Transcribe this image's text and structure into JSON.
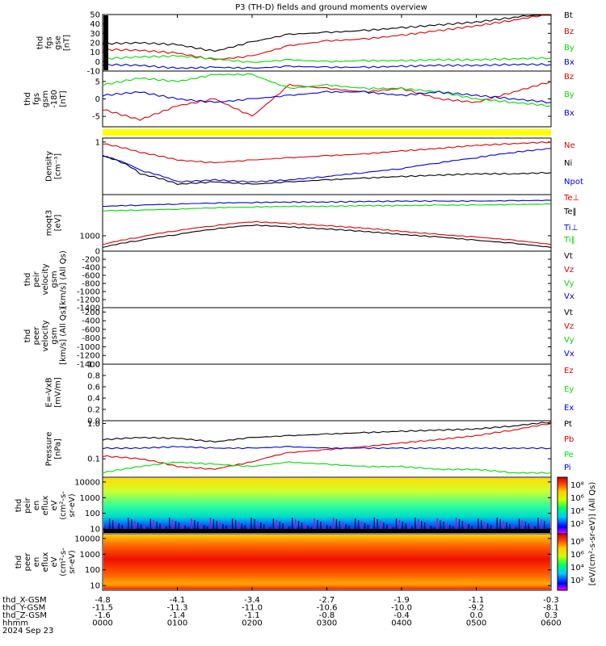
{
  "title": "P3 (TH-D) fields and ground moments overview",
  "date": "2024 Sep 23",
  "colors": {
    "black": "#000000",
    "red": "#e00000",
    "green": "#00dd00",
    "blue": "#0000dd",
    "yellow": "#ffff00"
  },
  "x_time_labels": [
    "0000",
    "0100",
    "0200",
    "0300",
    "0400",
    "0500",
    "0600"
  ],
  "ephemeris": [
    {
      "label": "thd_X-GSM",
      "values": [
        "-4.8",
        "-4.1",
        "-3.4",
        "-2.7",
        "-1.9",
        "-1.1",
        "-0.3"
      ]
    },
    {
      "label": "thd_Y-GSM",
      "values": [
        "-11.5",
        "-11.3",
        "-11.0",
        "-10.6",
        "-10.0",
        "-9.2",
        "-8.1"
      ]
    },
    {
      "label": "thd_Z-GSM",
      "values": [
        "-1.6",
        "-1.4",
        "-1.1",
        "-0.8",
        "-0.4",
        "0.0",
        "0.3"
      ]
    },
    {
      "label": "hhmm",
      "values": [
        "0000",
        "0100",
        "0200",
        "0300",
        "0400",
        "0500",
        "0600"
      ]
    }
  ],
  "spectrogram_colorbar_label": "[eV/(cm²-s-sr-eV)] (All Qs)",
  "spectrogram_colorbar_ticks": [
    "10⁸",
    "10⁶",
    "10⁴",
    "10²",
    "10⁸",
    "10⁶",
    "10⁴",
    "10²"
  ],
  "chart_data": [
    {
      "id": "fgs",
      "type": "line",
      "ylabel": [
        "thd",
        "fgs",
        "gse",
        "[nT]"
      ],
      "yticks": [
        "50",
        "40",
        "30",
        "20",
        "10",
        "0",
        "-10"
      ],
      "ylim": [
        -10,
        50
      ],
      "legend": [
        {
          "name": "Bt",
          "color": "#000000"
        },
        {
          "name": "Bz",
          "color": "#e00000"
        },
        {
          "name": "By",
          "color": "#00dd00"
        },
        {
          "name": "Bx",
          "color": "#0000dd"
        }
      ],
      "x": [
        0,
        0.5,
        1,
        1.5,
        2,
        2.5,
        3,
        3.5,
        4,
        4.5,
        5,
        5.5,
        6
      ],
      "series": [
        {
          "name": "Bt",
          "values": [
            19,
            20,
            18,
            11,
            21,
            29,
            31,
            33,
            36,
            39,
            42,
            47,
            52
          ]
        },
        {
          "name": "Bz",
          "values": [
            13,
            12,
            9,
            2,
            6,
            17,
            22,
            24,
            28,
            33,
            38,
            44,
            51
          ]
        },
        {
          "name": "By",
          "values": [
            3,
            5,
            6,
            3,
            -1,
            2,
            0,
            1,
            1,
            2,
            2,
            3,
            4
          ]
        },
        {
          "name": "Bx",
          "values": [
            -3,
            -4,
            -7,
            -6,
            -7,
            -5,
            -6,
            -6,
            -5,
            -4,
            -4,
            -3,
            -3
          ]
        }
      ]
    },
    {
      "id": "fgs_gsm",
      "type": "line",
      "ylabel": [
        "thd",
        "fgs",
        "gsm",
        "-180",
        "[nT]"
      ],
      "yticks": [
        "5",
        "0",
        "-5"
      ],
      "ylim": [
        -8,
        8
      ],
      "legend": [
        {
          "name": "Bz",
          "color": "#e00000"
        },
        {
          "name": "By",
          "color": "#00dd00"
        },
        {
          "name": "Bx",
          "color": "#0000dd"
        }
      ],
      "x": [
        0,
        0.5,
        1,
        1.5,
        2,
        2.5,
        3,
        3.5,
        4,
        4.5,
        5,
        5.5,
        6
      ],
      "series": [
        {
          "name": "Bz",
          "values": [
            -3,
            -6,
            -2,
            0,
            -5,
            4,
            3,
            2,
            3,
            0,
            -1,
            2,
            5
          ]
        },
        {
          "name": "By",
          "values": [
            4,
            6,
            5,
            7,
            7,
            3,
            4,
            3,
            3,
            2,
            0,
            -1,
            -2
          ]
        },
        {
          "name": "Bx",
          "values": [
            1,
            2,
            0,
            -1,
            0,
            1,
            2,
            2,
            1,
            2,
            1,
            0,
            -1
          ]
        }
      ]
    },
    {
      "id": "density",
      "type": "line",
      "ylabel": [
        "Density",
        "[cm⁻³]"
      ],
      "yscale": "log",
      "yticks": [
        "1"
      ],
      "ylim": [
        0.03,
        1.3
      ],
      "legend": [
        {
          "name": "Ne",
          "color": "#e00000"
        },
        {
          "name": "Ni",
          "color": "#000000"
        },
        {
          "name": "Npot",
          "color": "#0000dd"
        }
      ],
      "x": [
        0,
        0.5,
        1,
        1.5,
        2,
        2.5,
        3,
        3.5,
        4,
        4.5,
        5,
        5.5,
        6
      ],
      "series": [
        {
          "name": "Ne",
          "values": [
            0.9,
            0.5,
            0.3,
            0.25,
            0.3,
            0.35,
            0.4,
            0.45,
            0.55,
            0.65,
            0.8,
            0.9,
            1.0
          ]
        },
        {
          "name": "Ni",
          "values": [
            0.4,
            0.12,
            0.06,
            0.07,
            0.06,
            0.07,
            0.08,
            0.09,
            0.1,
            0.11,
            0.12,
            0.12,
            0.13
          ]
        },
        {
          "name": "Npot",
          "values": [
            0.4,
            0.15,
            0.07,
            0.08,
            0.07,
            0.08,
            0.1,
            0.13,
            0.17,
            0.25,
            0.35,
            0.5,
            0.65
          ]
        }
      ]
    },
    {
      "id": "temperature",
      "type": "line",
      "ylabel": [
        "moqt3",
        "[eV]"
      ],
      "yscale": "log",
      "yticks": [
        "1000"
      ],
      "ylim": [
        300,
        25000
      ],
      "legend": [
        {
          "name": "Te⊥",
          "color": "#e00000"
        },
        {
          "name": "Te‖",
          "color": "#000000"
        },
        {
          "name": "Ti⊥",
          "color": "#0000dd"
        },
        {
          "name": "Ti‖",
          "color": "#00dd00"
        }
      ],
      "x": [
        0,
        0.5,
        1,
        1.5,
        2,
        2.5,
        3,
        3.5,
        4,
        4.5,
        5,
        5.5,
        6
      ],
      "series": [
        {
          "name": "Te⊥",
          "values": [
            500,
            900,
            1500,
            2200,
            3000,
            2600,
            2200,
            1800,
            1400,
            1100,
            900,
            700,
            500
          ]
        },
        {
          "name": "Te‖",
          "values": [
            400,
            700,
            1100,
            1700,
            2300,
            2000,
            1700,
            1400,
            1100,
            900,
            700,
            550,
            400
          ]
        },
        {
          "name": "Ti⊥",
          "values": [
            10000,
            11000,
            12000,
            13000,
            13500,
            14000,
            14000,
            14500,
            15000,
            15000,
            15000,
            15500,
            16000
          ]
        },
        {
          "name": "Ti‖",
          "values": [
            7000,
            7500,
            8000,
            9000,
            9500,
            10000,
            10000,
            10500,
            10500,
            11000,
            11000,
            11500,
            12000
          ]
        }
      ]
    },
    {
      "id": "peir_velocity",
      "type": "line",
      "ylabel": [
        "thd",
        "peir",
        "velocity",
        "gsm",
        "[km/s] (All Qs)"
      ],
      "yticks": [
        "0",
        "-200",
        "-400",
        "-600",
        "-800",
        "-1000",
        "-1200",
        "-1400"
      ],
      "ylim": [
        -1400,
        0
      ],
      "legend": [
        {
          "name": "Vt",
          "color": "#000000"
        },
        {
          "name": "Vz",
          "color": "#e00000"
        },
        {
          "name": "Vy",
          "color": "#00dd00"
        },
        {
          "name": "Vx",
          "color": "#0000dd"
        }
      ],
      "series": []
    },
    {
      "id": "peer_velocity",
      "type": "line",
      "ylabel": [
        "thd",
        "peer",
        "velocity",
        "gsm",
        "[km/s] (All Qs)"
      ],
      "yticks": [
        "-200",
        "-400",
        "-600",
        "-800",
        "-1000",
        "-1200",
        "-1400"
      ],
      "ylim": [
        -1400,
        -100
      ],
      "legend": [
        {
          "name": "Vt",
          "color": "#000000"
        },
        {
          "name": "Vz",
          "color": "#e00000"
        },
        {
          "name": "Vy",
          "color": "#00dd00"
        },
        {
          "name": "Vx",
          "color": "#0000dd"
        }
      ],
      "series": []
    },
    {
      "id": "efield",
      "type": "line",
      "ylabel": [
        "E=-VxB",
        "[mV/m]"
      ],
      "yticks": [
        "1.0",
        "0.8",
        "0.6",
        "0.4",
        "0.2",
        "0.0"
      ],
      "ylim": [
        0,
        1
      ],
      "legend": [
        {
          "name": "Ez",
          "color": "#e00000"
        },
        {
          "name": "Ey",
          "color": "#00dd00"
        },
        {
          "name": "Ex",
          "color": "#0000dd"
        }
      ],
      "series": []
    },
    {
      "id": "pressure",
      "type": "line",
      "ylabel": [
        "Pressure",
        "[nPa]"
      ],
      "yscale": "log",
      "yticks": [
        "1.0",
        "0.1"
      ],
      "ylim": [
        0.03,
        1.2
      ],
      "legend": [
        {
          "name": "Pt",
          "color": "#000000"
        },
        {
          "name": "Pb",
          "color": "#e00000"
        },
        {
          "name": "Pe",
          "color": "#00dd00"
        },
        {
          "name": "Pi",
          "color": "#0000dd"
        }
      ],
      "x": [
        0,
        0.5,
        1,
        1.5,
        2,
        2.5,
        3,
        3.5,
        4,
        4.5,
        5,
        5.5,
        6
      ],
      "series": [
        {
          "name": "Pt",
          "values": [
            0.35,
            0.4,
            0.38,
            0.3,
            0.4,
            0.45,
            0.5,
            0.55,
            0.6,
            0.65,
            0.7,
            0.85,
            1.1
          ]
        },
        {
          "name": "Pb",
          "values": [
            0.12,
            0.1,
            0.06,
            0.05,
            0.08,
            0.15,
            0.18,
            0.22,
            0.28,
            0.35,
            0.45,
            0.65,
            1.0
          ]
        },
        {
          "name": "Pe",
          "values": [
            0.04,
            0.06,
            0.08,
            0.07,
            0.06,
            0.08,
            0.07,
            0.06,
            0.06,
            0.05,
            0.05,
            0.04,
            0.04
          ]
        },
        {
          "name": "Pi",
          "values": [
            0.2,
            0.2,
            0.22,
            0.2,
            0.2,
            0.22,
            0.2,
            0.2,
            0.2,
            0.2,
            0.2,
            0.2,
            0.2
          ]
        }
      ]
    },
    {
      "id": "peir_eflux",
      "type": "heatmap",
      "ylabel": [
        "thd",
        "peir",
        "en",
        "eflux",
        "eV",
        "(cm²-s-",
        "sr-eV)"
      ],
      "yscale": "log",
      "yticks": [
        "10000",
        "1000",
        "100",
        "10"
      ],
      "ylim": [
        5,
        20000
      ]
    },
    {
      "id": "peer_eflux",
      "type": "heatmap",
      "ylabel": [
        "thd",
        "peer",
        "en",
        "eflux",
        "eV",
        "(cm²-s-",
        "sr-eV)"
      ],
      "yscale": "log",
      "yticks": [
        "10000",
        "1000",
        "100",
        "10"
      ],
      "ylim": [
        5,
        20000
      ]
    }
  ]
}
